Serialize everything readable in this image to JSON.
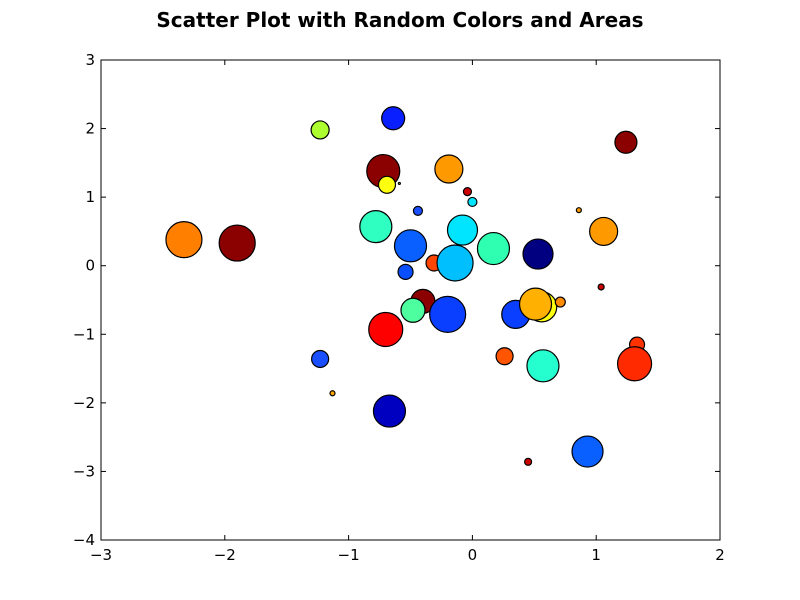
{
  "chart_data": {
    "type": "scatter",
    "title": "Scatter Plot with Random Colors and Areas",
    "xlabel": "",
    "ylabel": "",
    "xlim": [
      -3,
      2
    ],
    "ylim": [
      -4,
      3
    ],
    "xticks": [
      -3,
      -2,
      -1,
      0,
      1,
      2
    ],
    "yticks": [
      -4,
      -3,
      -2,
      -1,
      0,
      1,
      2,
      3
    ],
    "xtick_labels": [
      "−3",
      "−2",
      "−1",
      "0",
      "1",
      "2"
    ],
    "ytick_labels": [
      "−4",
      "−3",
      "−2",
      "−1",
      "0",
      "1",
      "2",
      "3"
    ],
    "grid": false,
    "points": [
      {
        "x": -2.33,
        "y": 0.38,
        "r": 18,
        "color": "#ff7f00"
      },
      {
        "x": -1.9,
        "y": 0.33,
        "r": 18,
        "color": "#8b0000"
      },
      {
        "x": -1.23,
        "y": 1.98,
        "r": 9,
        "color": "#adff2f"
      },
      {
        "x": -1.23,
        "y": -1.36,
        "r": 8.5,
        "color": "#1a4fff"
      },
      {
        "x": -1.13,
        "y": -1.86,
        "r": 2.5,
        "color": "#ffa500"
      },
      {
        "x": -0.64,
        "y": 2.15,
        "r": 11.5,
        "color": "#0a1fff"
      },
      {
        "x": -0.72,
        "y": 1.38,
        "r": 16.5,
        "color": "#8b0000"
      },
      {
        "x": -0.69,
        "y": 1.18,
        "r": 8.5,
        "color": "#ffff10"
      },
      {
        "x": -0.59,
        "y": 1.2,
        "r": 1,
        "color": "#ffff10"
      },
      {
        "x": -0.78,
        "y": 0.57,
        "r": 16,
        "color": "#2fffc0"
      },
      {
        "x": -0.44,
        "y": 0.8,
        "r": 4.5,
        "color": "#1a4fff"
      },
      {
        "x": -0.5,
        "y": 0.29,
        "r": 16,
        "color": "#0a5fff"
      },
      {
        "x": -0.54,
        "y": -0.09,
        "r": 7.5,
        "color": "#0a4fff"
      },
      {
        "x": -0.31,
        "y": 0.04,
        "r": 8,
        "color": "#ff4500"
      },
      {
        "x": -0.14,
        "y": 0.04,
        "r": 18,
        "color": "#00bfff"
      },
      {
        "x": -0.19,
        "y": 1.41,
        "r": 14,
        "color": "#ff9900"
      },
      {
        "x": -0.04,
        "y": 1.08,
        "r": 4,
        "color": "#cc0000"
      },
      {
        "x": 0.0,
        "y": 0.93,
        "r": 4.5,
        "color": "#00e5ff"
      },
      {
        "x": -0.08,
        "y": 0.52,
        "r": 15,
        "color": "#00e5ff"
      },
      {
        "x": 0.17,
        "y": 0.25,
        "r": 16,
        "color": "#2fffb0"
      },
      {
        "x": -0.4,
        "y": -0.52,
        "r": 12,
        "color": "#8b0000"
      },
      {
        "x": -0.48,
        "y": -0.65,
        "r": 12,
        "color": "#4dff9f"
      },
      {
        "x": -0.7,
        "y": -0.93,
        "r": 17,
        "color": "#ff0000"
      },
      {
        "x": -0.2,
        "y": -0.71,
        "r": 18,
        "color": "#0a3fff"
      },
      {
        "x": 0.35,
        "y": -0.71,
        "r": 14,
        "color": "#0a3fff"
      },
      {
        "x": 0.56,
        "y": -0.6,
        "r": 15,
        "color": "#ffff10"
      },
      {
        "x": 0.51,
        "y": -0.56,
        "r": 16,
        "color": "#ffb000"
      },
      {
        "x": 0.71,
        "y": -0.53,
        "r": 5,
        "color": "#ff8c00"
      },
      {
        "x": 0.53,
        "y": 0.17,
        "r": 15,
        "color": "#000080"
      },
      {
        "x": 0.86,
        "y": 0.81,
        "r": 2.5,
        "color": "#ff9900"
      },
      {
        "x": 1.06,
        "y": 0.5,
        "r": 14,
        "color": "#ff9900"
      },
      {
        "x": 1.24,
        "y": 1.8,
        "r": 11,
        "color": "#8b0000"
      },
      {
        "x": 1.04,
        "y": -0.31,
        "r": 3,
        "color": "#cc0000"
      },
      {
        "x": 1.33,
        "y": -1.15,
        "r": 7.5,
        "color": "#ff3300"
      },
      {
        "x": 1.31,
        "y": -1.43,
        "r": 17,
        "color": "#ff2a00"
      },
      {
        "x": 0.26,
        "y": -1.32,
        "r": 8.5,
        "color": "#ff5500"
      },
      {
        "x": 0.57,
        "y": -1.46,
        "r": 16,
        "color": "#25ffd0"
      },
      {
        "x": -0.67,
        "y": -2.12,
        "r": 16,
        "color": "#0000c0"
      },
      {
        "x": 0.45,
        "y": -2.86,
        "r": 3.5,
        "color": "#cc0000"
      },
      {
        "x": 0.93,
        "y": -2.71,
        "r": 15.5,
        "color": "#0a5fff"
      }
    ]
  }
}
